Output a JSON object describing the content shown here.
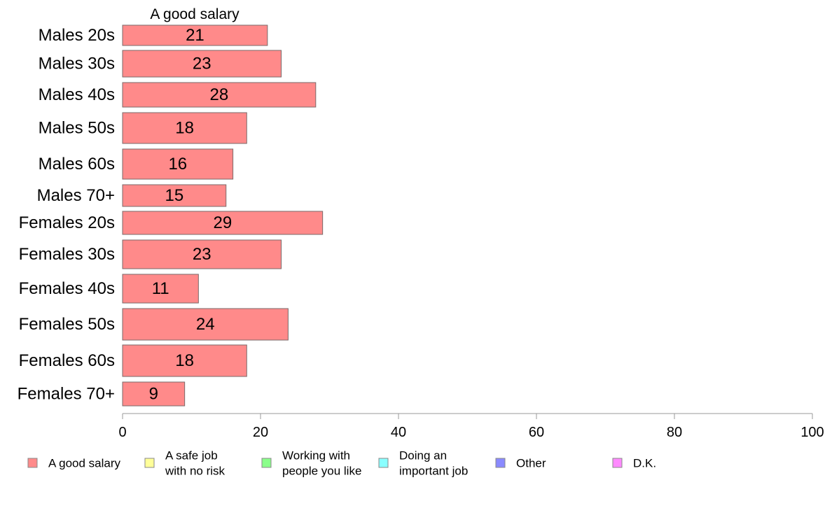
{
  "chart_data": {
    "type": "bar",
    "orientation": "horizontal",
    "title": "",
    "series_title": "A good salary",
    "xlabel": "",
    "ylabel": "",
    "xlim": [
      0,
      100
    ],
    "x_ticks": [
      "0",
      "20",
      "40",
      "60",
      "80",
      "100"
    ],
    "grid": false,
    "categories": [
      "Males 20s",
      "Males 30s",
      "Males 40s",
      "Males 50s",
      "Males 60s",
      "Males 70+",
      "Females 20s",
      "Females 30s",
      "Females 40s",
      "Females 50s",
      "Females 60s",
      "Females 70+"
    ],
    "series": [
      {
        "name": "A good salary",
        "color": "#ff8a8a",
        "values": [
          21,
          23,
          28,
          18,
          16,
          15,
          29,
          23,
          11,
          24,
          18,
          9
        ],
        "labels": [
          "21",
          "23",
          "28",
          "18",
          "16",
          "15",
          "29",
          "23",
          "11",
          "24",
          "18",
          "9"
        ]
      }
    ],
    "legend_position": "bottom",
    "legend": [
      {
        "label": [
          "A good salary"
        ],
        "color": "#ff8a8a"
      },
      {
        "label": [
          "A safe job",
          "with no risk"
        ],
        "color": "#ffff99"
      },
      {
        "label": [
          "Working with",
          "people you like"
        ],
        "color": "#8aff8a"
      },
      {
        "label": [
          "Doing an",
          "important job"
        ],
        "color": "#8affff"
      },
      {
        "label": [
          "Other"
        ],
        "color": "#8a8aff"
      },
      {
        "label": [
          "D.K."
        ],
        "color": "#ff8aff"
      }
    ]
  }
}
